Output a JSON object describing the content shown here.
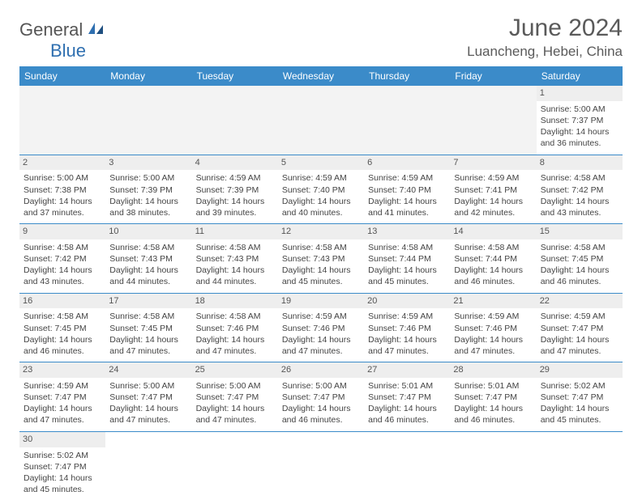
{
  "logo": {
    "text1": "General",
    "text2": "Blue"
  },
  "title": "June 2024",
  "location": "Luancheng, Hebei, China",
  "brand_color": "#3b8bc9",
  "day_headers": [
    "Sunday",
    "Monday",
    "Tuesday",
    "Wednesday",
    "Thursday",
    "Friday",
    "Saturday"
  ],
  "weeks": [
    [
      null,
      null,
      null,
      null,
      null,
      null,
      {
        "d": "1",
        "sr": "5:00 AM",
        "ss": "7:37 PM",
        "dl": "14 hours and 36 minutes."
      }
    ],
    [
      {
        "d": "2",
        "sr": "5:00 AM",
        "ss": "7:38 PM",
        "dl": "14 hours and 37 minutes."
      },
      {
        "d": "3",
        "sr": "5:00 AM",
        "ss": "7:39 PM",
        "dl": "14 hours and 38 minutes."
      },
      {
        "d": "4",
        "sr": "4:59 AM",
        "ss": "7:39 PM",
        "dl": "14 hours and 39 minutes."
      },
      {
        "d": "5",
        "sr": "4:59 AM",
        "ss": "7:40 PM",
        "dl": "14 hours and 40 minutes."
      },
      {
        "d": "6",
        "sr": "4:59 AM",
        "ss": "7:40 PM",
        "dl": "14 hours and 41 minutes."
      },
      {
        "d": "7",
        "sr": "4:59 AM",
        "ss": "7:41 PM",
        "dl": "14 hours and 42 minutes."
      },
      {
        "d": "8",
        "sr": "4:58 AM",
        "ss": "7:42 PM",
        "dl": "14 hours and 43 minutes."
      }
    ],
    [
      {
        "d": "9",
        "sr": "4:58 AM",
        "ss": "7:42 PM",
        "dl": "14 hours and 43 minutes."
      },
      {
        "d": "10",
        "sr": "4:58 AM",
        "ss": "7:43 PM",
        "dl": "14 hours and 44 minutes."
      },
      {
        "d": "11",
        "sr": "4:58 AM",
        "ss": "7:43 PM",
        "dl": "14 hours and 44 minutes."
      },
      {
        "d": "12",
        "sr": "4:58 AM",
        "ss": "7:43 PM",
        "dl": "14 hours and 45 minutes."
      },
      {
        "d": "13",
        "sr": "4:58 AM",
        "ss": "7:44 PM",
        "dl": "14 hours and 45 minutes."
      },
      {
        "d": "14",
        "sr": "4:58 AM",
        "ss": "7:44 PM",
        "dl": "14 hours and 46 minutes."
      },
      {
        "d": "15",
        "sr": "4:58 AM",
        "ss": "7:45 PM",
        "dl": "14 hours and 46 minutes."
      }
    ],
    [
      {
        "d": "16",
        "sr": "4:58 AM",
        "ss": "7:45 PM",
        "dl": "14 hours and 46 minutes."
      },
      {
        "d": "17",
        "sr": "4:58 AM",
        "ss": "7:45 PM",
        "dl": "14 hours and 47 minutes."
      },
      {
        "d": "18",
        "sr": "4:58 AM",
        "ss": "7:46 PM",
        "dl": "14 hours and 47 minutes."
      },
      {
        "d": "19",
        "sr": "4:59 AM",
        "ss": "7:46 PM",
        "dl": "14 hours and 47 minutes."
      },
      {
        "d": "20",
        "sr": "4:59 AM",
        "ss": "7:46 PM",
        "dl": "14 hours and 47 minutes."
      },
      {
        "d": "21",
        "sr": "4:59 AM",
        "ss": "7:46 PM",
        "dl": "14 hours and 47 minutes."
      },
      {
        "d": "22",
        "sr": "4:59 AM",
        "ss": "7:47 PM",
        "dl": "14 hours and 47 minutes."
      }
    ],
    [
      {
        "d": "23",
        "sr": "4:59 AM",
        "ss": "7:47 PM",
        "dl": "14 hours and 47 minutes."
      },
      {
        "d": "24",
        "sr": "5:00 AM",
        "ss": "7:47 PM",
        "dl": "14 hours and 47 minutes."
      },
      {
        "d": "25",
        "sr": "5:00 AM",
        "ss": "7:47 PM",
        "dl": "14 hours and 47 minutes."
      },
      {
        "d": "26",
        "sr": "5:00 AM",
        "ss": "7:47 PM",
        "dl": "14 hours and 46 minutes."
      },
      {
        "d": "27",
        "sr": "5:01 AM",
        "ss": "7:47 PM",
        "dl": "14 hours and 46 minutes."
      },
      {
        "d": "28",
        "sr": "5:01 AM",
        "ss": "7:47 PM",
        "dl": "14 hours and 46 minutes."
      },
      {
        "d": "29",
        "sr": "5:02 AM",
        "ss": "7:47 PM",
        "dl": "14 hours and 45 minutes."
      }
    ],
    [
      {
        "d": "30",
        "sr": "5:02 AM",
        "ss": "7:47 PM",
        "dl": "14 hours and 45 minutes."
      },
      null,
      null,
      null,
      null,
      null,
      null
    ]
  ],
  "labels": {
    "sunrise": "Sunrise:",
    "sunset": "Sunset:",
    "daylight": "Daylight:"
  }
}
